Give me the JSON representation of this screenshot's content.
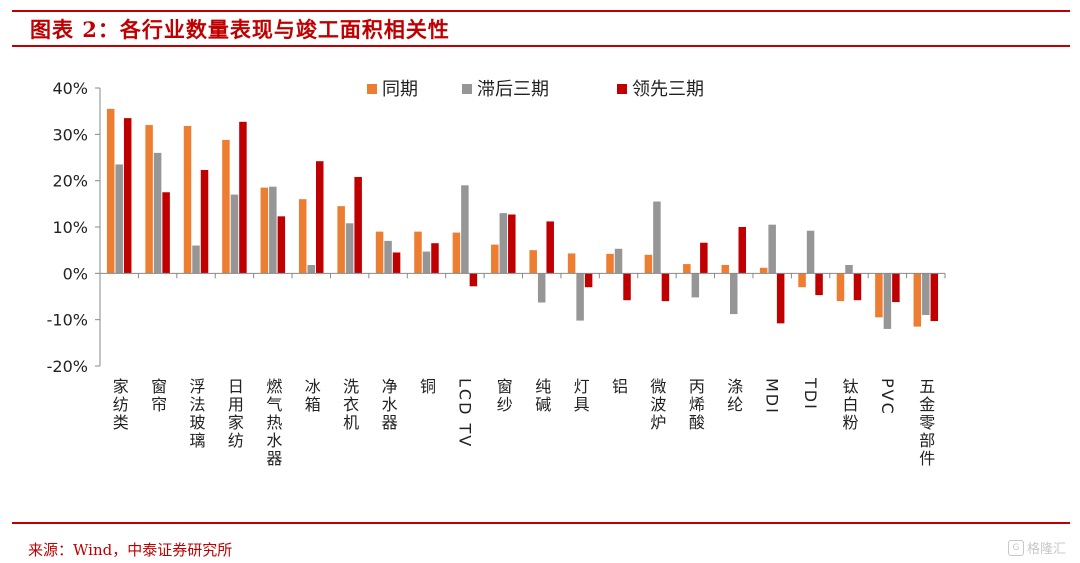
{
  "header": {
    "title": "图表 2：各行业数量表现与竣工面积相关性"
  },
  "footer": {
    "source": "来源：Wind，中泰证券研究所",
    "watermark": "格隆汇"
  },
  "colors": {
    "accent": "#c00000",
    "series": [
      "#ed7d31",
      "#969696",
      "#c00000"
    ]
  },
  "chart_data": {
    "type": "bar",
    "title": "",
    "xlabel": "",
    "ylabel": "",
    "ylim": [
      -20,
      40
    ],
    "yticks": [
      -20,
      -10,
      0,
      10,
      20,
      30,
      40
    ],
    "ytick_labels": [
      "-20%",
      "-10%",
      "0%",
      "10%",
      "20%",
      "30%",
      "40%"
    ],
    "grid": false,
    "legend_position": "top",
    "categories": [
      "家纺类",
      "窗帘",
      "浮法玻璃",
      "日用家纺",
      "燃气热水器",
      "冰箱",
      "洗衣机",
      "净水器",
      "铜",
      "LCD TV",
      "窗纱",
      "纯碱",
      "灯具",
      "铝",
      "微波炉",
      "丙烯酸",
      "涤纶",
      "MDI",
      "TDI",
      "钛白粉",
      "PVC",
      "五金零部件"
    ],
    "series": [
      {
        "name": "同期",
        "values": [
          35.5,
          32,
          31.8,
          28.8,
          18.5,
          16,
          14.5,
          9,
          9,
          8.8,
          6.2,
          5,
          4.3,
          4.2,
          4,
          2,
          1.8,
          1.2,
          -3,
          -6,
          -9.5,
          -11.5
        ]
      },
      {
        "name": "滞后三期",
        "values": [
          23.5,
          26,
          6,
          17,
          18.7,
          1.8,
          10.8,
          7,
          4.7,
          19,
          13,
          -6.3,
          -10.2,
          5.3,
          15.5,
          -5.2,
          -8.8,
          10.5,
          9.2,
          1.8,
          -12,
          -9
        ]
      },
      {
        "name": "领先三期",
        "values": [
          33.5,
          17.5,
          22.3,
          32.7,
          12.3,
          24.2,
          20.8,
          4.5,
          6.5,
          -2.8,
          12.7,
          11.2,
          -3,
          -5.8,
          -6,
          6.6,
          10,
          -10.8,
          -4.7,
          -5.8,
          -6.2,
          -10.3
        ]
      }
    ]
  }
}
